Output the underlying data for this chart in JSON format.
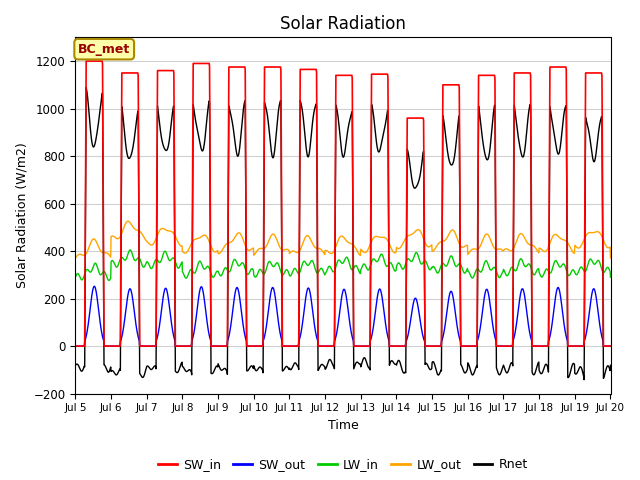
{
  "title": "Solar Radiation",
  "xlabel": "Time",
  "ylabel": "Solar Radiation (W/m2)",
  "ylim": [
    -200,
    1300
  ],
  "yticks": [
    -200,
    0,
    200,
    400,
    600,
    800,
    1000,
    1200
  ],
  "xlim_days": [
    5,
    20
  ],
  "xtick_days": [
    5,
    6,
    7,
    8,
    9,
    10,
    11,
    12,
    13,
    14,
    15,
    16,
    17,
    18,
    19,
    20
  ],
  "xtick_labels": [
    "Jul 5",
    "Jul 6",
    "Jul 7",
    "Jul 8",
    "Jul 9",
    "Jul 10",
    "Jul 11",
    "Jul 12",
    "Jul 13",
    "Jul 14",
    "Jul 15",
    "Jul 16",
    "Jul 17",
    "Jul 18",
    "Jul 19",
    "Jul 20"
  ],
  "colors": {
    "SW_in": "#ff0000",
    "SW_out": "#0000ff",
    "LW_in": "#00cc00",
    "LW_out": "#ffa500",
    "Rnet": "#000000"
  },
  "legend_label": "BC_met",
  "legend_bg": "#ffffaa",
  "legend_edge": "#aa8800",
  "background_color": "#ffffff",
  "grid_color": "#d0d0d0",
  "resolution_hours": 0.25,
  "sw_in_peaks": [
    1200,
    1150,
    1160,
    1190,
    1175,
    1175,
    1165,
    1140,
    1145,
    960,
    1100,
    1140,
    1150,
    1175,
    1150
  ],
  "sunrise": 0.26,
  "sunset": 0.8
}
